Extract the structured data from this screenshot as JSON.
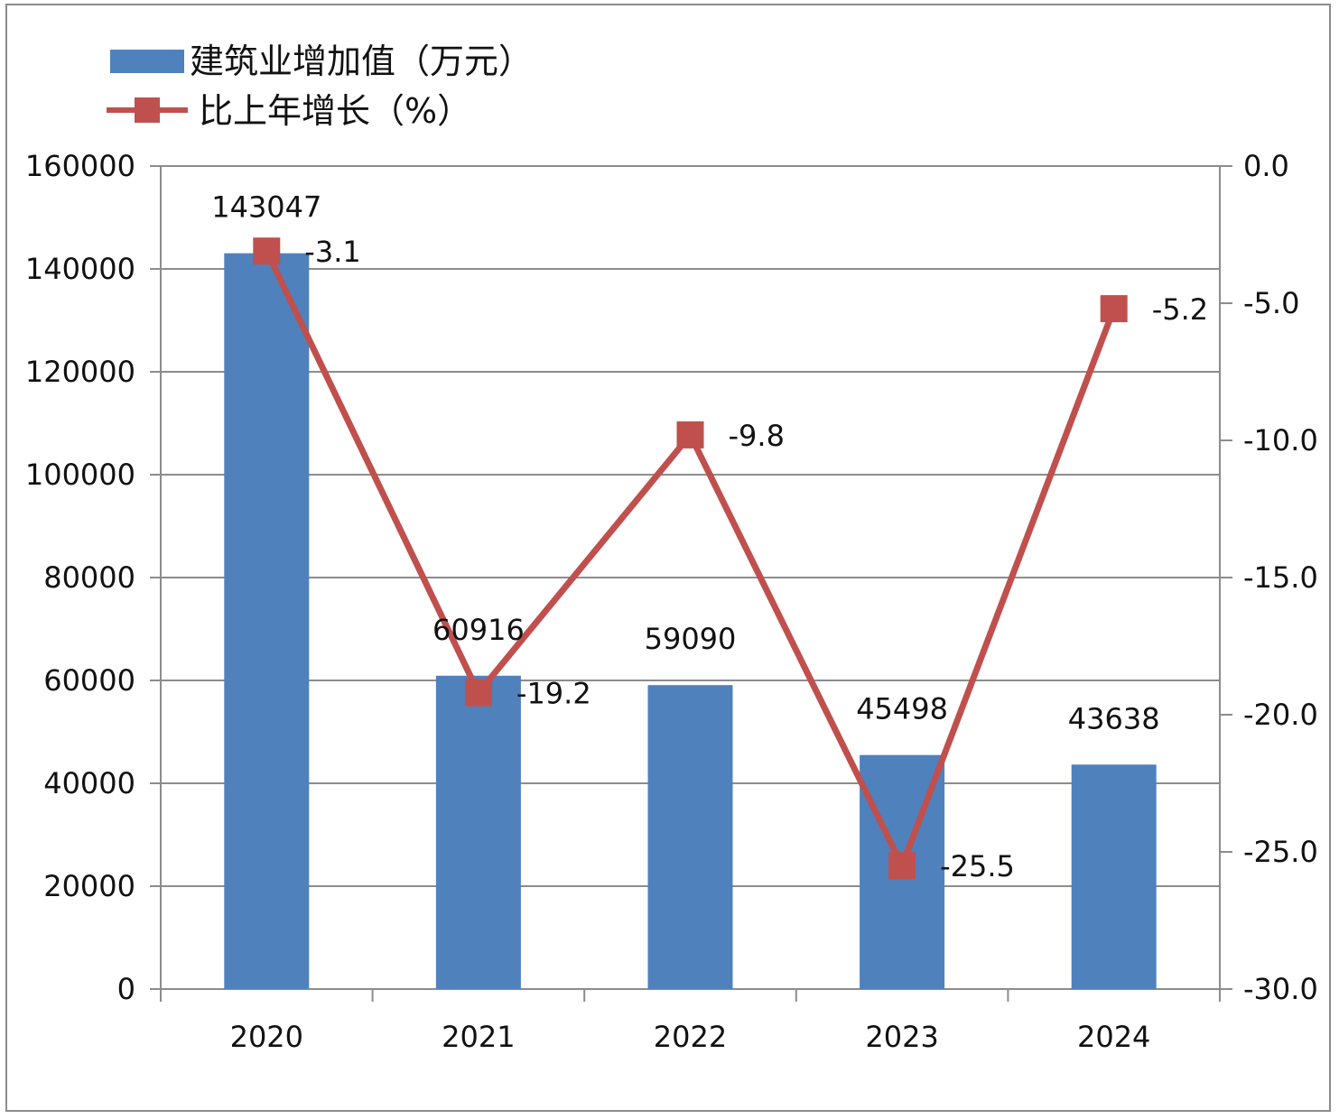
{
  "chart_data": {
    "type": "bar",
    "categories": [
      "2020",
      "2021",
      "2022",
      "2023",
      "2024"
    ],
    "series": [
      {
        "name": "建筑业增加值（万元）",
        "kind": "bar",
        "axis": "left",
        "color": "#4f81bd",
        "values": [
          143047,
          60916,
          59090,
          45498,
          43638
        ],
        "labels": [
          "143047",
          "60916",
          "59090",
          "45498",
          "43638"
        ]
      },
      {
        "name": "比上年增长（%）",
        "kind": "line",
        "axis": "right",
        "color": "#c0504d",
        "values": [
          -3.1,
          -19.2,
          -9.8,
          -25.5,
          -5.2
        ],
        "labels": [
          "-3.1",
          "-19.2",
          "-9.8",
          "-25.5",
          "-5.2"
        ]
      }
    ],
    "y_left": {
      "min": 0,
      "max": 160000,
      "ticks": [
        "0",
        "20000",
        "40000",
        "60000",
        "80000",
        "100000",
        "120000",
        "140000",
        "160000"
      ]
    },
    "y_right": {
      "min": -30,
      "max": 0,
      "ticks": [
        "-30.0",
        "-25.0",
        "-20.0",
        "-15.0",
        "-10.0",
        "-5.0",
        "0.0"
      ]
    },
    "grid": true,
    "legend_position": "top-left",
    "title": "",
    "xlabel": "",
    "ylabel": ""
  }
}
